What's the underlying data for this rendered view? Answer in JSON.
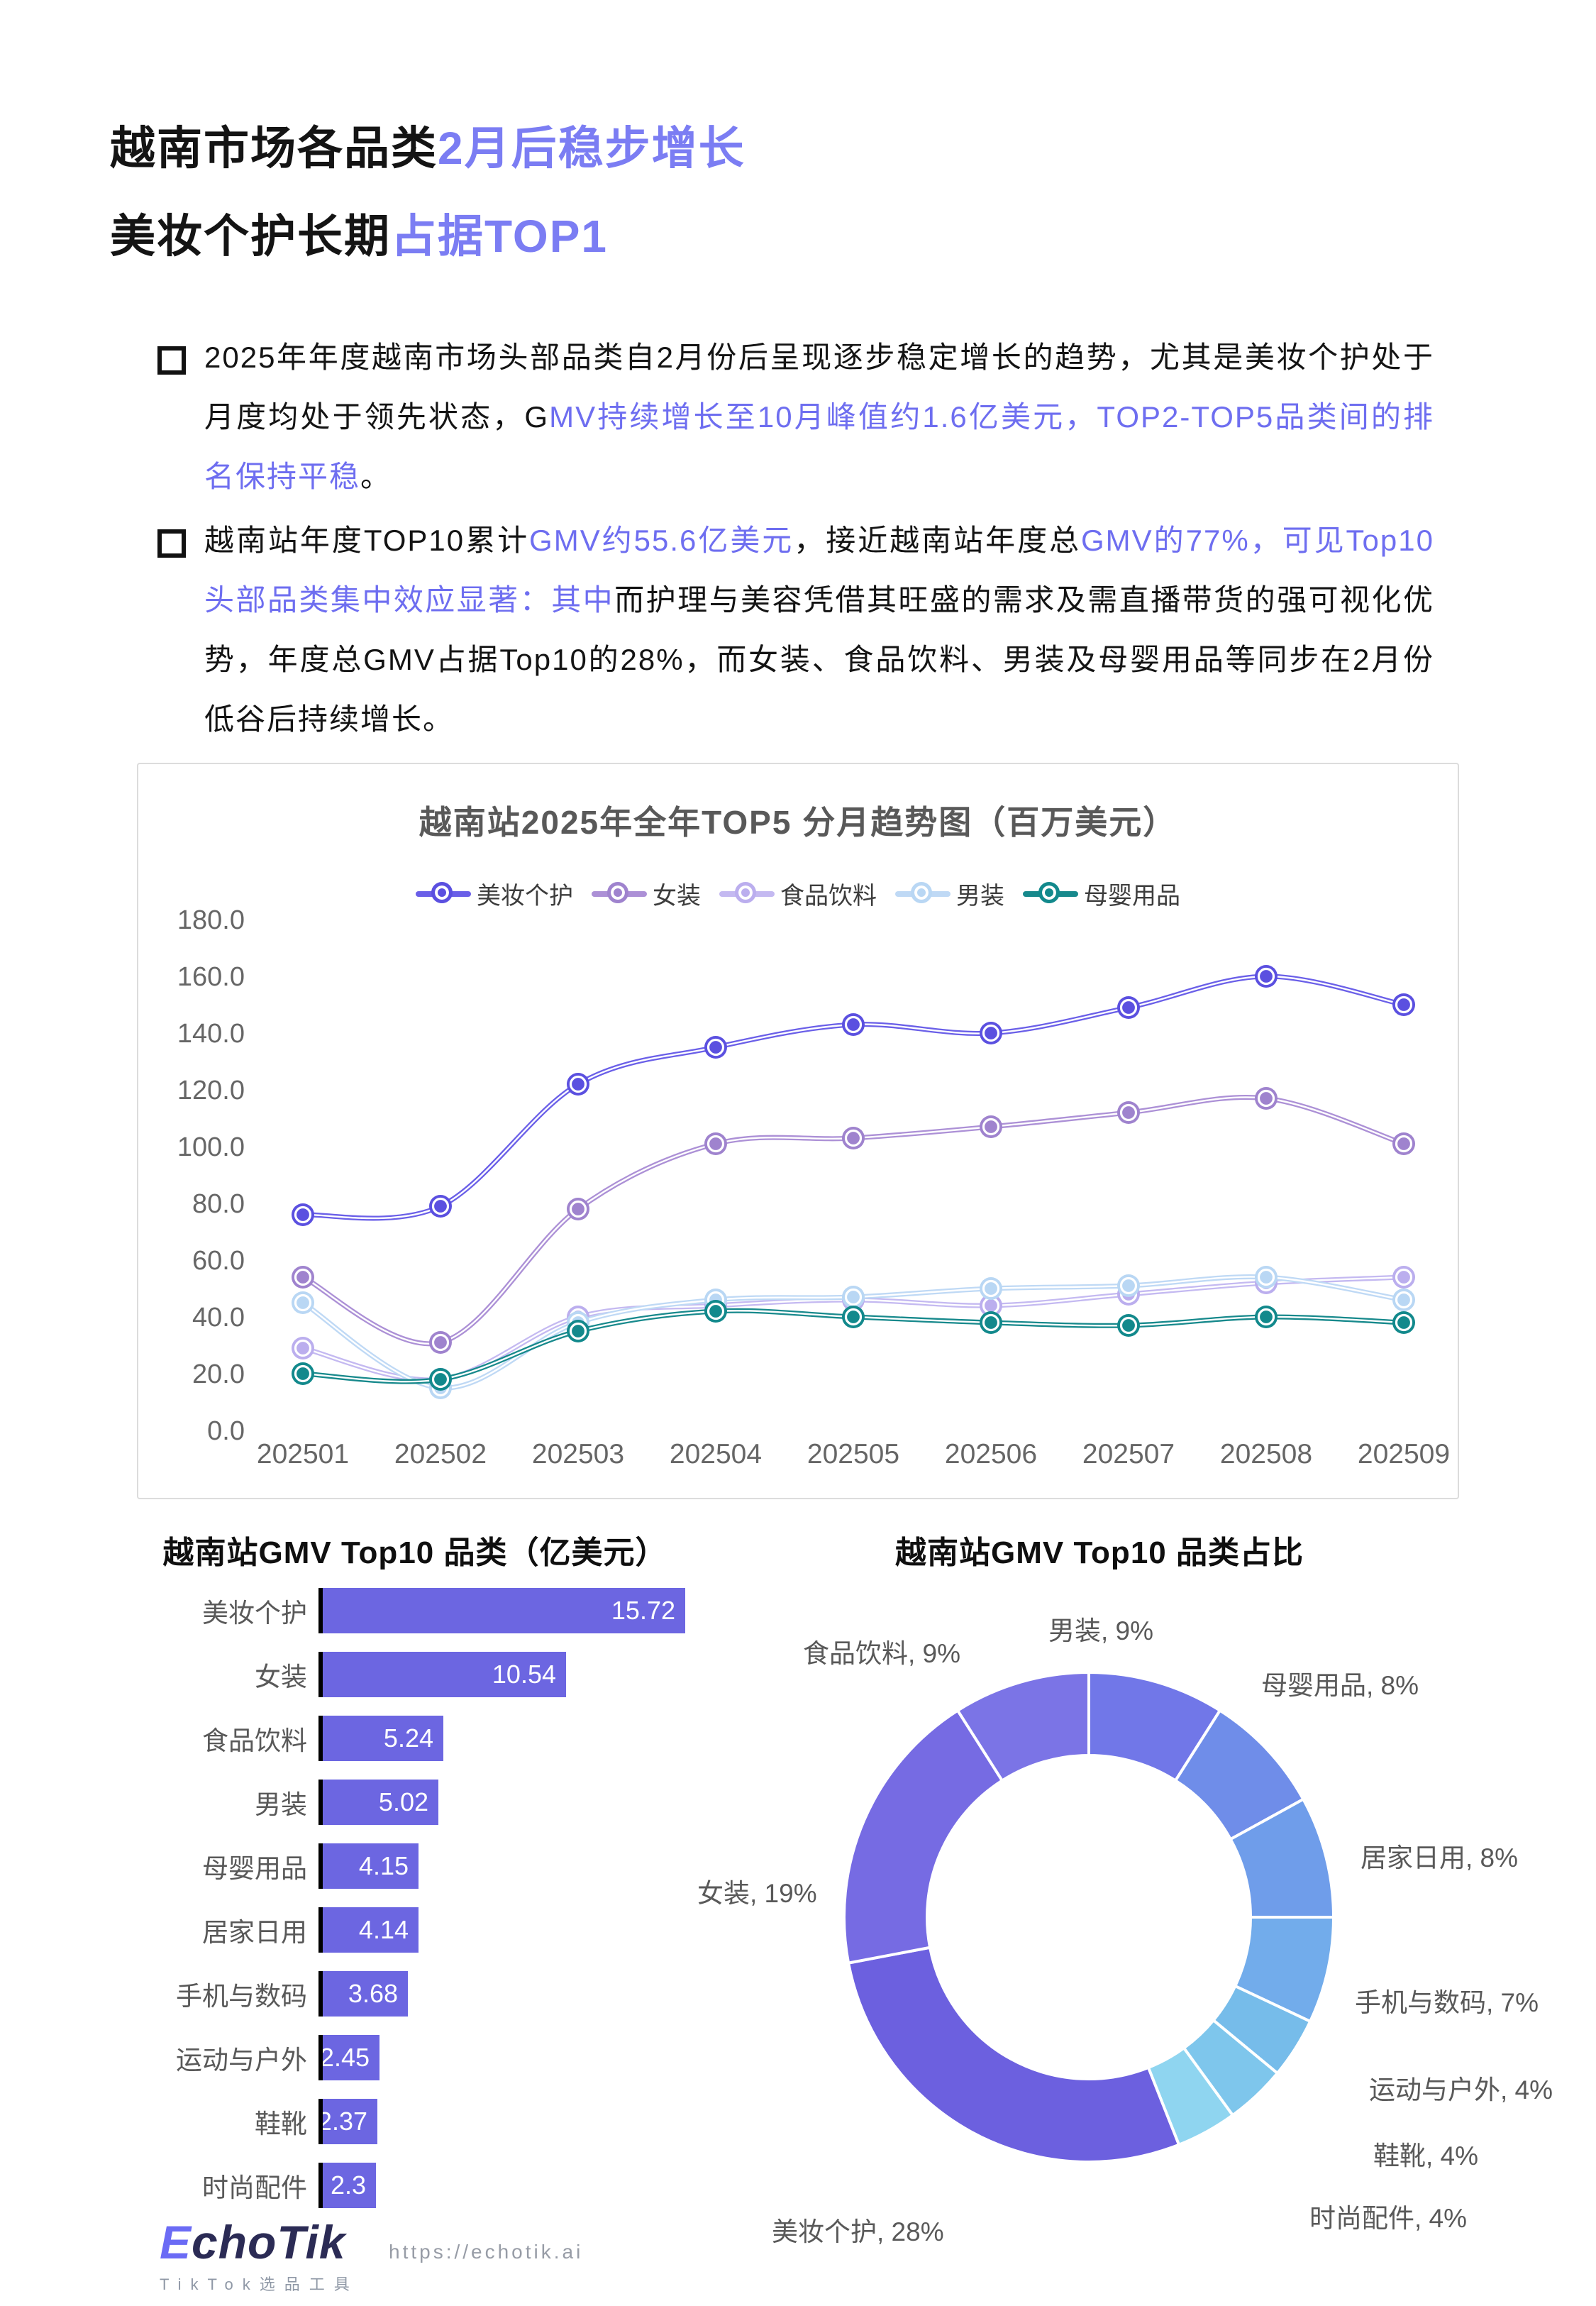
{
  "colors": {
    "accent_title": "#7B7DF3",
    "accent_text": "#6E6EF0",
    "ink": "#141414",
    "axis_text": "#666666",
    "chart_title": "#595959",
    "bar": "#6C66E1"
  },
  "header": {
    "line1": [
      {
        "text": "越南市场各品类",
        "style": "ink"
      },
      {
        "text": "2月后稳步增长",
        "style": "accent"
      }
    ],
    "line2": [
      {
        "text": "美妆个护长期",
        "style": "ink"
      },
      {
        "text": "占据TOP1",
        "style": "accent"
      }
    ]
  },
  "bullets": [
    {
      "segments": [
        {
          "text": "2025年年度越南市场头部品类自2月份后呈现逐步稳定增长的趋势，尤其是美妆个护处于月度均处于领先状态，G",
          "style": "ink"
        },
        {
          "text": "MV持续增长至10月峰值约1.6亿美元，TOP2-TOP5品类间的排名保持平稳",
          "style": "accent"
        },
        {
          "text": "。",
          "style": "ink"
        }
      ]
    },
    {
      "segments": [
        {
          "text": "越南站年度TOP10累计",
          "style": "ink"
        },
        {
          "text": "GMV约55.6亿美元",
          "style": "accent"
        },
        {
          "text": "，接近越南站年度总",
          "style": "ink"
        },
        {
          "text": "GMV的77%，可见Top10头部品类集中效应显著：其中",
          "style": "accent"
        },
        {
          "text": "而护理与美容凭借其旺盛的需求及需直播带货的强可视化优势，年度总GMV占据Top10的28%，而女装、食品饮料、男装及母婴用品等同步在2月份低谷后持续增长。",
          "style": "ink"
        }
      ]
    }
  ],
  "chart_data": [
    {
      "type": "line",
      "title": "越南站2025年全年TOP5 分月趋势图（百万美元）",
      "categories": [
        "202501",
        "202502",
        "202503",
        "202504",
        "202505",
        "202506",
        "202507",
        "202508",
        "202509"
      ],
      "series": [
        {
          "name": "美妆个护",
          "color": "#5B50E0",
          "line_color": "#6A5FE8",
          "values": [
            76,
            79,
            122,
            135,
            143,
            140,
            149,
            160,
            150
          ]
        },
        {
          "name": "女装",
          "color": "#9F83CE",
          "line_color": "#AC90D6",
          "values": [
            54,
            31,
            78,
            101,
            103,
            107,
            112,
            117,
            101
          ]
        },
        {
          "name": "食品饮料",
          "color": "#BBAEEE",
          "line_color": "#C4B9F1",
          "values": [
            29,
            18,
            40,
            44,
            46,
            44,
            48,
            52,
            54
          ]
        },
        {
          "name": "男装",
          "color": "#B9D7F4",
          "line_color": "#BFD9F5",
          "values": [
            45,
            15,
            38,
            46,
            47,
            50,
            51,
            54,
            46
          ]
        },
        {
          "name": "母婴用品",
          "color": "#12898C",
          "line_color": "#17898C",
          "values": [
            20,
            18,
            35,
            42,
            40,
            38,
            37,
            40,
            38
          ]
        }
      ],
      "ylim": [
        0,
        180
      ],
      "ytick_step": 20,
      "ytick_labels": [
        "0.0",
        "20.0",
        "40.0",
        "60.0",
        "80.0",
        "100.0",
        "120.0",
        "140.0",
        "160.0",
        "180.0"
      ],
      "legend_position": "top",
      "grid": false
    },
    {
      "type": "bar",
      "title": "越南站GMV Top10 品类（亿美元）",
      "orientation": "horizontal",
      "categories": [
        "美妆个护",
        "女装",
        "食品饮料",
        "男装",
        "母婴用品",
        "居家日用",
        "手机与数码",
        "运动与户外",
        "鞋靴",
        "时尚配件"
      ],
      "values": [
        15.72,
        10.54,
        5.24,
        5.02,
        4.15,
        4.14,
        3.68,
        2.45,
        2.37,
        2.3
      ],
      "value_labels": [
        "15.72",
        "10.54",
        "5.24",
        "5.02",
        "4.15",
        "4.14",
        "3.68",
        "2.45",
        "2.37",
        "2.3"
      ],
      "xlabel": "",
      "ylabel": ""
    },
    {
      "type": "pie",
      "title": "越南站GMV Top10 品类占比",
      "donut": true,
      "inner_ratio": 0.66,
      "start_angle_deg_from_top": 0,
      "direction": "clockwise",
      "slices": [
        {
          "label": "男装",
          "pct": 9,
          "color": "#7177E8"
        },
        {
          "label": "母婴用品",
          "pct": 8,
          "color": "#6F8DE9"
        },
        {
          "label": "居家日用",
          "pct": 8,
          "color": "#6F9DEA"
        },
        {
          "label": "手机与数码",
          "pct": 7,
          "color": "#72ACEB"
        },
        {
          "label": "运动与户外",
          "pct": 4,
          "color": "#76BCEA"
        },
        {
          "label": "鞋靴",
          "pct": 4,
          "color": "#7EC6EC"
        },
        {
          "label": "时尚配件",
          "pct": 4,
          "color": "#8FD5F0"
        },
        {
          "label": "美妆个护",
          "pct": 28,
          "color": "#6C60DF"
        },
        {
          "label": "女装",
          "pct": 19,
          "color": "#766BE3"
        },
        {
          "label": "食品饮料",
          "pct": 9,
          "color": "#7B74E6"
        }
      ]
    }
  ],
  "footer": {
    "logo_e": "E",
    "logo_rest": "choTik",
    "logo_sub": "TikTok选品工具",
    "url": "https://echotik.ai"
  }
}
